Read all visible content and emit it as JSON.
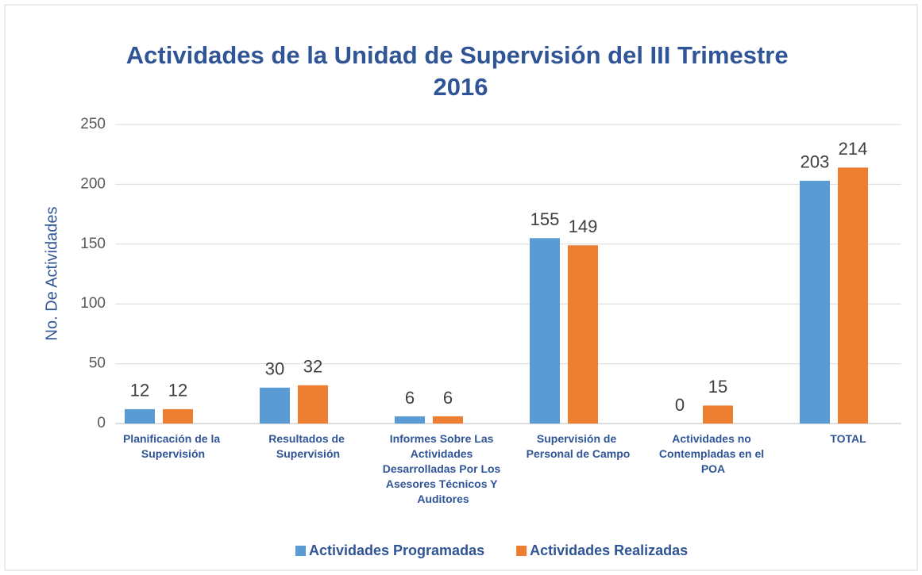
{
  "chart_data": {
    "type": "bar",
    "title": "Actividades de la Unidad de Supervisión del III Trimestre 2016",
    "y_label": "No. De Actividades",
    "categories": [
      "Planificación de la Supervisión",
      "Resultados de Supervisión",
      "Informes Sobre Las Actividades Desarrolladas Por Los Asesores Técnicos Y Auditores",
      "Supervisión de Personal de Campo",
      "Actividades no Contempladas en el POA",
      "TOTAL"
    ],
    "series": [
      {
        "name": "Actividades Programadas",
        "color": "#5b9bd5",
        "values": [
          12,
          30,
          6,
          155,
          0,
          203
        ]
      },
      {
        "name": "Actividades Realizadas",
        "color": "#ed7d31",
        "values": [
          12,
          32,
          6,
          149,
          15,
          214
        ]
      }
    ],
    "ylim": [
      0,
      250
    ],
    "yticks": [
      0,
      50,
      100,
      150,
      200,
      250
    ],
    "grid": true,
    "legend": "bottom"
  }
}
